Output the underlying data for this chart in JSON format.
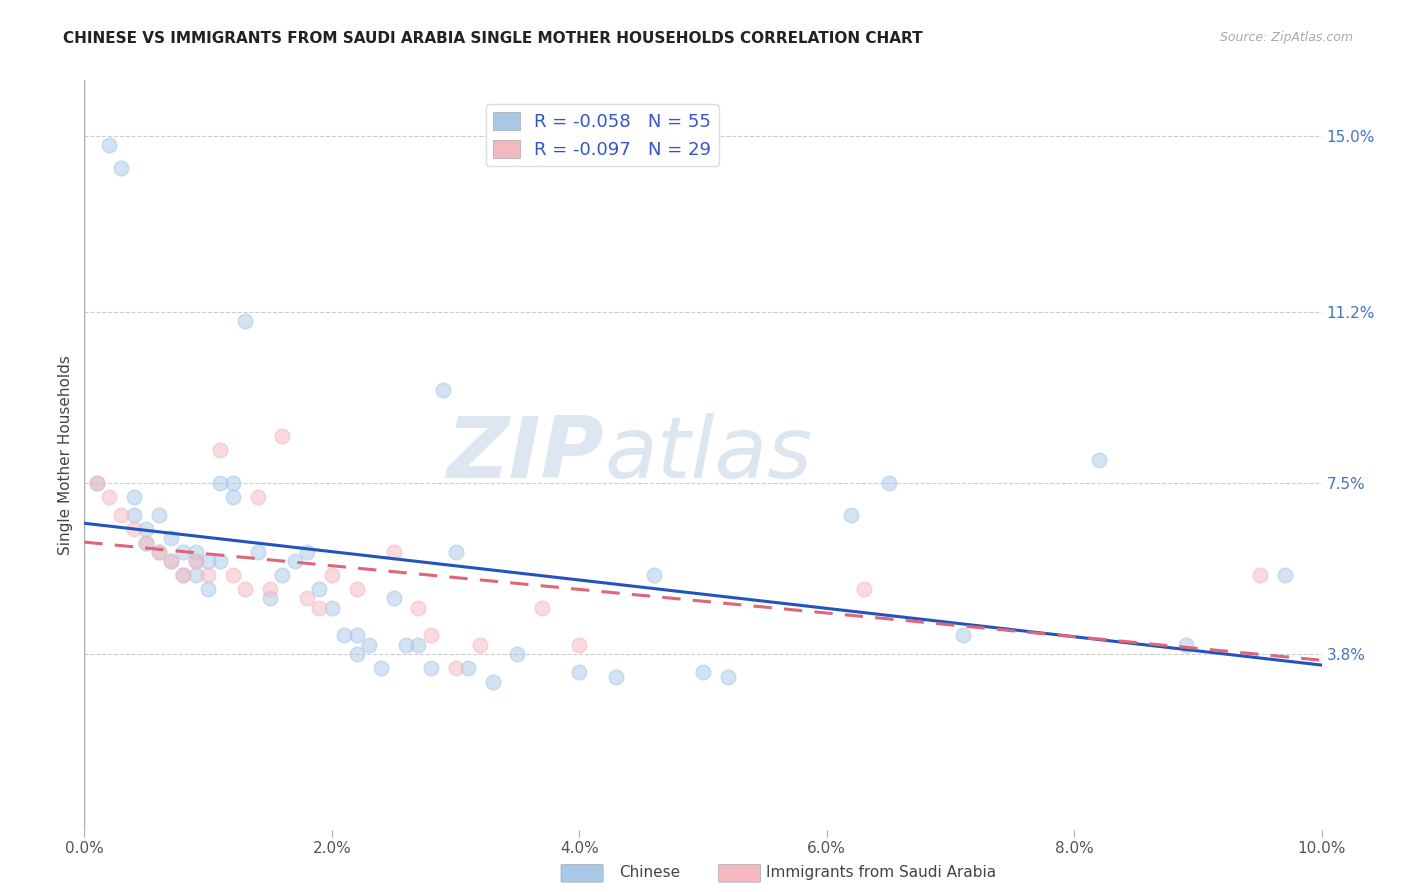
{
  "title": "CHINESE VS IMMIGRANTS FROM SAUDI ARABIA SINGLE MOTHER HOUSEHOLDS CORRELATION CHART",
  "source": "Source: ZipAtlas.com",
  "ylabel": "Single Mother Households",
  "xlabel_ticks": [
    "0.0%",
    "2.0%",
    "4.0%",
    "6.0%",
    "8.0%",
    "10.0%"
  ],
  "xlabel_vals": [
    0.0,
    0.02,
    0.04,
    0.06,
    0.08,
    0.1
  ],
  "ylabel_ticks": [
    "3.8%",
    "7.5%",
    "11.2%",
    "15.0%"
  ],
  "ylabel_vals": [
    0.038,
    0.075,
    0.112,
    0.15
  ],
  "xlim": [
    0.0,
    0.1
  ],
  "ylim": [
    0.0,
    0.162
  ],
  "legend_label1": "R = -0.058   N = 55",
  "legend_label2": "R = -0.097   N = 29",
  "legend_color1": "#a8c8e8",
  "legend_color2": "#f4b8c0",
  "trendline_color1": "#2255bb",
  "trendline_color2": "#dd6677",
  "watermark_zip": "ZIP",
  "watermark_atlas": "atlas",
  "bg_color": "#ffffff",
  "scatter_alpha": 0.5,
  "scatter_size": 110,
  "bottom_legend_label1": "Chinese",
  "bottom_legend_label2": "Immigrants from Saudi Arabia",
  "chinese_x": [
    0.001,
    0.002,
    0.003,
    0.004,
    0.004,
    0.005,
    0.005,
    0.006,
    0.006,
    0.007,
    0.007,
    0.008,
    0.008,
    0.009,
    0.009,
    0.009,
    0.01,
    0.01,
    0.011,
    0.011,
    0.012,
    0.012,
    0.013,
    0.014,
    0.015,
    0.016,
    0.017,
    0.018,
    0.019,
    0.02,
    0.021,
    0.022,
    0.022,
    0.023,
    0.024,
    0.025,
    0.026,
    0.027,
    0.028,
    0.029,
    0.03,
    0.031,
    0.033,
    0.035,
    0.04,
    0.043,
    0.046,
    0.05,
    0.052,
    0.062,
    0.065,
    0.071,
    0.082,
    0.089,
    0.097
  ],
  "chinese_y": [
    0.075,
    0.148,
    0.143,
    0.072,
    0.068,
    0.065,
    0.062,
    0.06,
    0.068,
    0.063,
    0.058,
    0.06,
    0.055,
    0.058,
    0.055,
    0.06,
    0.052,
    0.058,
    0.075,
    0.058,
    0.075,
    0.072,
    0.11,
    0.06,
    0.05,
    0.055,
    0.058,
    0.06,
    0.052,
    0.048,
    0.042,
    0.042,
    0.038,
    0.04,
    0.035,
    0.05,
    0.04,
    0.04,
    0.035,
    0.095,
    0.06,
    0.035,
    0.032,
    0.038,
    0.034,
    0.033,
    0.055,
    0.034,
    0.033,
    0.068,
    0.075,
    0.042,
    0.08,
    0.04,
    0.055
  ],
  "saudi_x": [
    0.001,
    0.002,
    0.003,
    0.004,
    0.005,
    0.006,
    0.007,
    0.008,
    0.009,
    0.01,
    0.011,
    0.012,
    0.013,
    0.014,
    0.015,
    0.016,
    0.018,
    0.019,
    0.02,
    0.022,
    0.025,
    0.027,
    0.028,
    0.03,
    0.032,
    0.037,
    0.04,
    0.063,
    0.095
  ],
  "saudi_y": [
    0.075,
    0.072,
    0.068,
    0.065,
    0.062,
    0.06,
    0.058,
    0.055,
    0.058,
    0.055,
    0.082,
    0.055,
    0.052,
    0.072,
    0.052,
    0.085,
    0.05,
    0.048,
    0.055,
    0.052,
    0.06,
    0.048,
    0.042,
    0.035,
    0.04,
    0.048,
    0.04,
    0.052,
    0.055
  ]
}
